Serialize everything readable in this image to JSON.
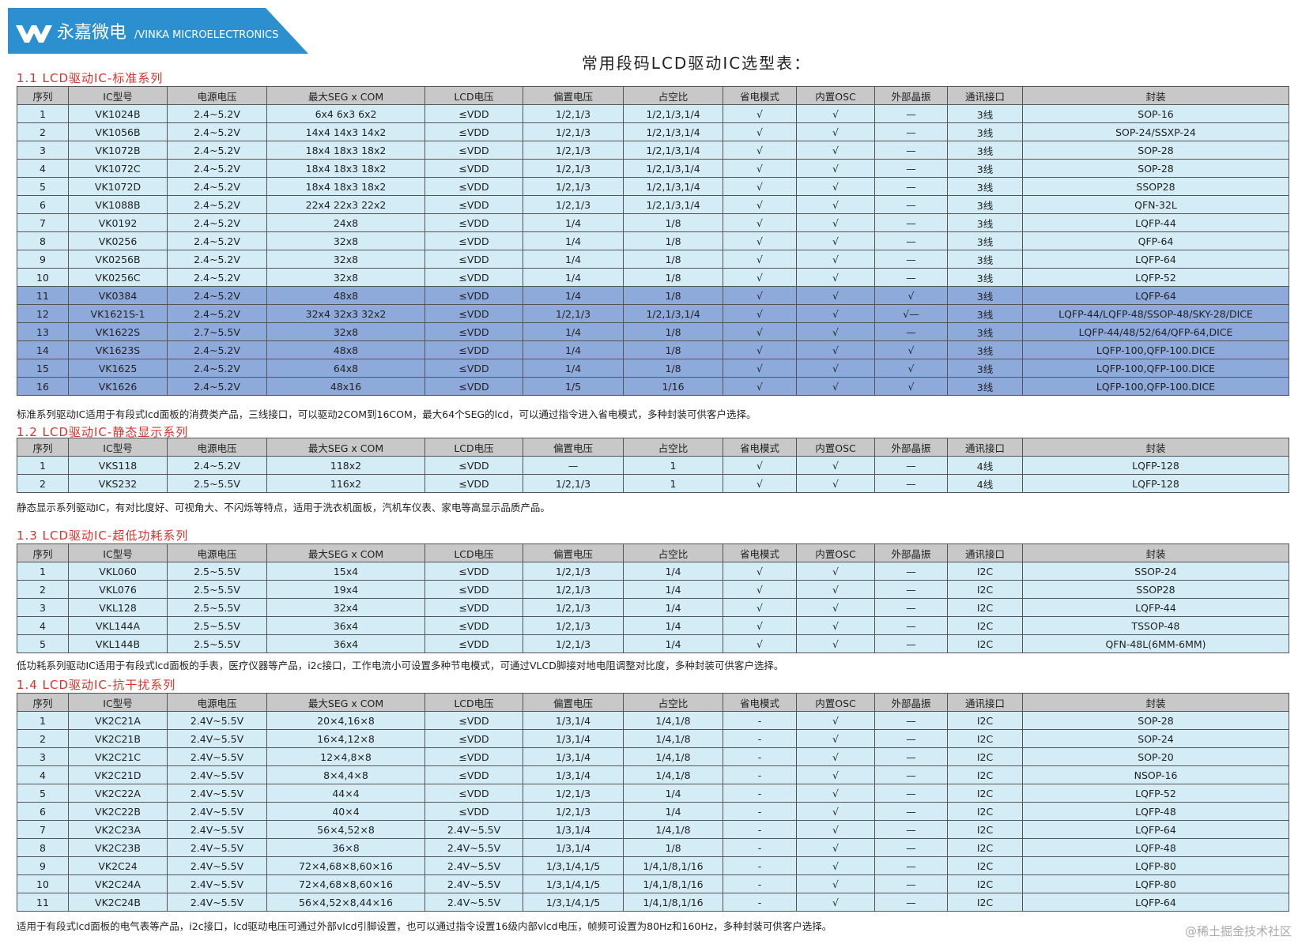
{
  "header": {
    "brand_cn": "永嘉微电",
    "brand_en": "/VINKA MICROELECTRONICS"
  },
  "title": "常用段码LCD驱动IC选型表：",
  "row_color": "#d3ecf5",
  "highlight_color": "#8eaadb",
  "header_color": "#c8c8c8",
  "heading_color": "#e0302c",
  "sections": [
    {
      "heading": "1.1 LCD驱动IC-标准系列",
      "columns": [
        "序列",
        "IC型号",
        "电源电压",
        "最大SEG x COM",
        "LCD电压",
        "偏置电压",
        "占空比",
        "省电模式",
        "内置OSC",
        "外部晶振",
        "通讯接口",
        "封装"
      ],
      "rows": [
        [
          "1",
          "VK1024B",
          "2.4~5.2V",
          "6x4 6x3 6x2",
          "≤VDD",
          "1/2,1/3",
          "1/2,1/3,1/4",
          "√",
          "√",
          "—",
          "3线",
          "SOP-16"
        ],
        [
          "2",
          "VK1056B",
          "2.4~5.2V",
          "14x4 14x3 14x2",
          "≤VDD",
          "1/2,1/3",
          "1/2,1/3,1/4",
          "√",
          "√",
          "—",
          "3线",
          "SOP-24/SSXP-24"
        ],
        [
          "3",
          "VK1072B",
          "2.4~5.2V",
          "18x4 18x3 18x2",
          "≤VDD",
          "1/2,1/3",
          "1/2,1/3,1/4",
          "√",
          "√",
          "—",
          "3线",
          "SOP-28"
        ],
        [
          "4",
          "VK1072C",
          "2.4~5.2V",
          "18x4 18x3 18x2",
          "≤VDD",
          "1/2,1/3",
          "1/2,1/3,1/4",
          "√",
          "√",
          "—",
          "3线",
          "SOP-28"
        ],
        [
          "5",
          "VK1072D",
          "2.4~5.2V",
          "18x4 18x3 18x2",
          "≤VDD",
          "1/2,1/3",
          "1/2,1/3,1/4",
          "√",
          "√",
          "—",
          "3线",
          "SSOP28"
        ],
        [
          "6",
          "VK1088B",
          "2.4~5.2V",
          "22x4 22x3 22x2",
          "≤VDD",
          "1/2,1/3",
          "1/2,1/3,1/4",
          "√",
          "√",
          "—",
          "3线",
          "QFN-32L"
        ],
        [
          "7",
          "VK0192",
          "2.4~5.2V",
          "24x8",
          "≤VDD",
          "1/4",
          "1/8",
          "√",
          "√",
          "—",
          "3线",
          "LQFP-44"
        ],
        [
          "8",
          "VK0256",
          "2.4~5.2V",
          "32x8",
          "≤VDD",
          "1/4",
          "1/8",
          "√",
          "√",
          "—",
          "3线",
          "QFP-64"
        ],
        [
          "9",
          "VK0256B",
          "2.4~5.2V",
          "32x8",
          "≤VDD",
          "1/4",
          "1/8",
          "√",
          "√",
          "—",
          "3线",
          "LQFP-64"
        ],
        [
          "10",
          "VK0256C",
          "2.4~5.2V",
          "32x8",
          "≤VDD",
          "1/4",
          "1/8",
          "√",
          "√",
          "—",
          "3线",
          "LQFP-52"
        ],
        [
          "11",
          "VK0384",
          "2.4~5.2V",
          "48x8",
          "≤VDD",
          "1/4",
          "1/8",
          "√",
          "√",
          "√",
          "3线",
          "LQFP-64"
        ],
        [
          "12",
          "VK1621S-1",
          "2.4~5.2V",
          "32x4 32x3 32x2",
          "≤VDD",
          "1/2,1/3",
          "1/2,1/3,1/4",
          "√",
          "√",
          "√—",
          "3线",
          "LQFP-44/LQFP-48/SSOP-48/SKY-28/DICE"
        ],
        [
          "13",
          "VK1622S",
          "2.7~5.5V",
          "32x8",
          "≤VDD",
          "1/4",
          "1/8",
          "√",
          "√",
          "—",
          "3线",
          "LQFP-44/48/52/64/QFP-64,DICE"
        ],
        [
          "14",
          "VK1623S",
          "2.4~5.2V",
          "48x8",
          "≤VDD",
          "1/4",
          "1/8",
          "√",
          "√",
          "√",
          "3线",
          "LQFP-100,QFP-100.DICE"
        ],
        [
          "15",
          "VK1625",
          "2.4~5.2V",
          "64x8",
          "≤VDD",
          "1/4",
          "1/8",
          "√",
          "√",
          "√",
          "3线",
          "LQFP-100,QFP-100.DICE"
        ],
        [
          "16",
          "VK1626",
          "2.4~5.2V",
          "48x16",
          "≤VDD",
          "1/5",
          "1/16",
          "√",
          "√",
          "√",
          "3线",
          "LQFP-100,QFP-100.DICE"
        ]
      ],
      "highlighted": [
        false,
        false,
        false,
        false,
        false,
        false,
        false,
        false,
        false,
        false,
        true,
        true,
        true,
        true,
        true,
        true
      ],
      "note": "标准系列驱动IC适用于有段式lcd面板的消费类产品，三线接口，可以驱动2COM到16COM，最大64个SEG的lcd，可以通过指令进入省电模式，多种封装可供客户选择。"
    },
    {
      "heading": "1.2 LCD驱动IC-静态显示系列",
      "columns": [
        "序列",
        "IC型号",
        "电源电压",
        "最大SEG x COM",
        "LCD电压",
        "偏置电压",
        "占空比",
        "省电模式",
        "内置OSC",
        "外部晶振",
        "通讯接口",
        "封装"
      ],
      "rows": [
        [
          "1",
          "VKS118",
          "2.4~5.2V",
          "118x2",
          "≤VDD",
          "—",
          "1",
          "√",
          "√",
          "—",
          "4线",
          "LQFP-128"
        ],
        [
          "2",
          "VKS232",
          "2.5~5.5V",
          "116x2",
          "≤VDD",
          "1/2,1/3",
          "1",
          "√",
          "√",
          "—",
          "4线",
          "LQFP-128"
        ]
      ],
      "note": "静态显示系列驱动IC，有对比度好、可视角大、不闪烁等特点，适用于洗衣机面板，汽机车仪表、家电等高显示品质产品。"
    },
    {
      "heading": "1.3 LCD驱动IC-超低功耗系列",
      "columns": [
        "序列",
        "IC型号",
        "电源电压",
        "最大SEG x COM",
        "LCD电压",
        "偏置电压",
        "占空比",
        "省电模式",
        "内置OSC",
        "外部晶振",
        "通讯接口",
        "封装"
      ],
      "rows": [
        [
          "1",
          "VKL060",
          "2.5~5.5V",
          "15x4",
          "≤VDD",
          "1/2,1/3",
          "1/4",
          "√",
          "√",
          "—",
          "I2C",
          "SSOP-24"
        ],
        [
          "2",
          "VKL076",
          "2.5~5.5V",
          "19x4",
          "≤VDD",
          "1/2,1/3",
          "1/4",
          "√",
          "√",
          "—",
          "I2C",
          "SSOP28"
        ],
        [
          "3",
          "VKL128",
          "2.5~5.5V",
          "32x4",
          "≤VDD",
          "1/2,1/3",
          "1/4",
          "√",
          "√",
          "—",
          "I2C",
          "LQFP-44"
        ],
        [
          "4",
          "VKL144A",
          "2.5~5.5V",
          "36x4",
          "≤VDD",
          "1/2,1/3",
          "1/4",
          "√",
          "√",
          "—",
          "I2C",
          "TSSOP-48"
        ],
        [
          "5",
          "VKL144B",
          "2.5~5.5V",
          "36x4",
          "≤VDD",
          "1/2,1/3",
          "1/4",
          "√",
          "√",
          "—",
          "I2C",
          "QFN-48L(6MM-6MM)"
        ]
      ],
      "note": "低功耗系列驱动IC适用于有段式lcd面板的手表，医疗仪器等产品，i2c接口，工作电流小可设置多种节电模式，可通过VLCD脚接对地电阻调整对比度，多种封装可供客户选择。"
    },
    {
      "heading": "1.4 LCD驱动IC-抗干扰系列",
      "columns": [
        "序列",
        "IC型号",
        "电源电压",
        "最大SEG x COM",
        "LCD电压",
        "偏置电压",
        "占空比",
        "省电模式",
        "内置OSC",
        "外部晶振",
        "通讯接口",
        "封装"
      ],
      "rows": [
        [
          "1",
          "VK2C21A",
          "2.4V~5.5V",
          "20×4,16×8",
          "≤VDD",
          "1/3,1/4",
          "1/4,1/8",
          "-",
          "√",
          "—",
          "I2C",
          "SOP-28"
        ],
        [
          "2",
          "VK2C21B",
          "2.4V~5.5V",
          "16×4,12×8",
          "≤VDD",
          "1/3,1/4",
          "1/4,1/8",
          "-",
          "√",
          "—",
          "I2C",
          "SOP-24"
        ],
        [
          "3",
          "VK2C21C",
          "2.4V~5.5V",
          "12×4,8×8",
          "≤VDD",
          "1/3,1/4",
          "1/4,1/8",
          "-",
          "√",
          "—",
          "I2C",
          "SOP-20"
        ],
        [
          "4",
          "VK2C21D",
          "2.4V~5.5V",
          "8×4,4×8",
          "≤VDD",
          "1/3,1/4",
          "1/4,1/8",
          "-",
          "√",
          "—",
          "I2C",
          "NSOP-16"
        ],
        [
          "5",
          "VK2C22A",
          "2.4V~5.5V",
          "44×4",
          "≤VDD",
          "1/2,1/3",
          "1/4",
          "-",
          "√",
          "—",
          "I2C",
          "LQFP-52"
        ],
        [
          "6",
          "VK2C22B",
          "2.4V~5.5V",
          "40×4",
          "≤VDD",
          "1/2,1/3",
          "1/4",
          "-",
          "√",
          "—",
          "I2C",
          "LQFP-48"
        ],
        [
          "7",
          "VK2C23A",
          "2.4V~5.5V",
          "56×4,52×8",
          "2.4V~5.5V",
          "1/3,1/4",
          "1/4,1/8",
          "-",
          "√",
          "—",
          "I2C",
          "LQFP-64"
        ],
        [
          "8",
          "VK2C23B",
          "2.4V~5.5V",
          "36×8",
          "2.4V~5.5V",
          "1/3,1/4",
          "1/8",
          "-",
          "√",
          "—",
          "I2C",
          "LQFP-48"
        ],
        [
          "9",
          "VK2C24",
          "2.4V~5.5V",
          "72×4,68×8,60×16",
          "2.4V~5.5V",
          "1/3,1/4,1/5",
          "1/4,1/8,1/16",
          "-",
          "√",
          "—",
          "I2C",
          "LQFP-80"
        ],
        [
          "10",
          "VK2C24A",
          "2.4V~5.5V",
          "72×4,68×8,60×16",
          "2.4V~5.5V",
          "1/3,1/4,1/5",
          "1/4,1/8,1/16",
          "-",
          "√",
          "—",
          "I2C",
          "LQFP-80"
        ],
        [
          "11",
          "VK2C24B",
          "2.4V~5.5V",
          "56×4,52×8,44×16",
          "2.4V~5.5V",
          "1/3,1/4,1/5",
          "1/4,1/8,1/16",
          "-",
          "√",
          "—",
          "I2C",
          "LQFP-64"
        ]
      ],
      "note": "适用于有段式lcd面板的电气表等产品，i2c接口，lcd驱动电压可通过外部vlcd引脚设置，也可以通过指令设置16级内部vlcd电压，帧频可设置为80Hz和160Hz，多种封装可供客户选择。"
    }
  ],
  "watermark": "@稀土掘金技术社区"
}
